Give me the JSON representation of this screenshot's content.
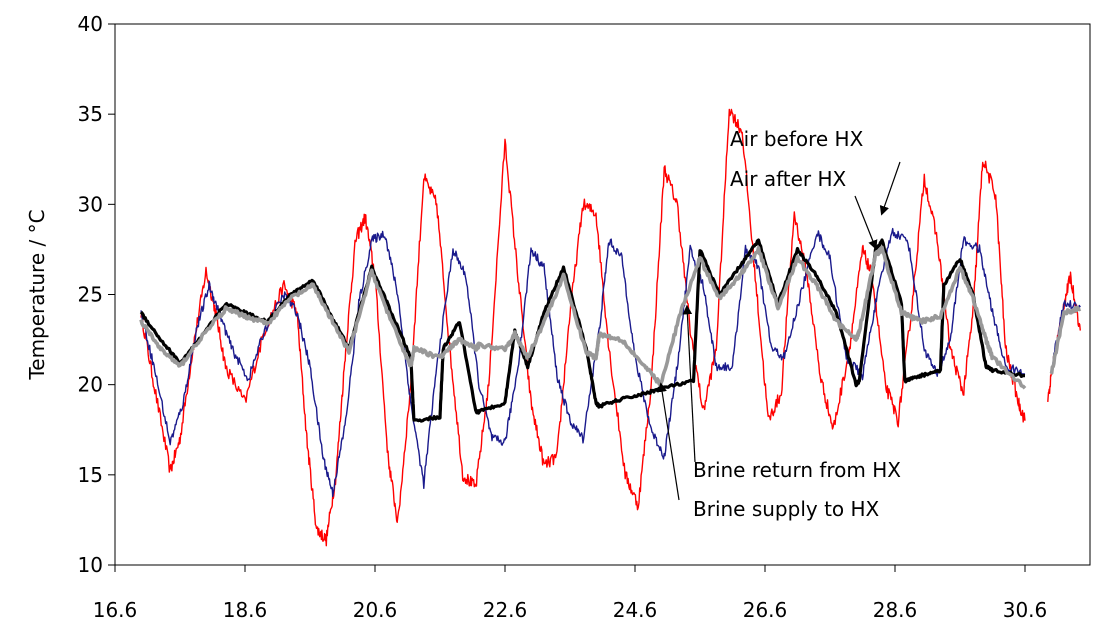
{
  "chart_data": {
    "type": "line",
    "title": "",
    "xlabel": "",
    "ylabel": "Temperature / °C",
    "xlim": [
      16.6,
      31.6
    ],
    "ylim": [
      10,
      40
    ],
    "x_ticks": [
      "16.6",
      "18.6",
      "20.6",
      "22.6",
      "24.6",
      "26.6",
      "28.6",
      "30.6"
    ],
    "y_ticks": [
      "10",
      "15",
      "20",
      "25",
      "30",
      "35",
      "40"
    ],
    "grid": false,
    "legend": "none",
    "series": [
      {
        "name": "Air before HX",
        "color": "#ff0000",
        "x": [
          17.0,
          17.2,
          17.45,
          17.6,
          17.8,
          18.0,
          18.15,
          18.3,
          18.6,
          18.9,
          19.2,
          19.4,
          19.55,
          19.7,
          19.85,
          20.0,
          20.15,
          20.3,
          20.45,
          20.6,
          20.8,
          20.95,
          21.15,
          21.35,
          21.55,
          21.75,
          21.95,
          22.15,
          22.35,
          22.6,
          22.8,
          23.0,
          23.2,
          23.4,
          23.6,
          23.8,
          24.0,
          24.2,
          24.45,
          24.65,
          24.85,
          25.05,
          25.25,
          25.45,
          25.65,
          25.85,
          26.05,
          26.25,
          26.45,
          26.65,
          26.85,
          27.05,
          27.25,
          27.45,
          27.65,
          27.9,
          28.1,
          28.25,
          28.45,
          28.65,
          28.85,
          29.05,
          29.25,
          29.45,
          29.65,
          29.8,
          29.95,
          30.15,
          30.3,
          30.5,
          30.6
        ],
        "y": [
          24.0,
          20.0,
          15.2,
          17.0,
          22.0,
          26.3,
          24.0,
          21.0,
          19.0,
          23.0,
          25.5,
          24.0,
          17.0,
          12.0,
          11.4,
          15.0,
          22.0,
          28.0,
          29.3,
          26.0,
          16.0,
          12.3,
          20.0,
          31.5,
          30.0,
          22.0,
          15.0,
          14.3,
          20.0,
          33.5,
          26.0,
          19.0,
          15.5,
          16.0,
          24.0,
          30.0,
          29.5,
          22.0,
          15.0,
          13.3,
          20.0,
          32.0,
          30.0,
          23.0,
          18.5,
          22.0,
          35.3,
          34.0,
          26.0,
          18.0,
          19.5,
          29.5,
          26.0,
          20.5,
          17.5,
          22.0,
          27.5,
          26.0,
          20.0,
          18.0,
          24.0,
          31.5,
          28.0,
          22.0,
          19.5,
          24.0,
          32.5,
          30.5,
          22.0,
          19.0,
          18.0
        ]
      },
      {
        "name": "Air after HX",
        "color": "#1a1a8c",
        "x": [
          17.0,
          17.2,
          17.45,
          17.65,
          17.85,
          18.05,
          18.2,
          18.4,
          18.65,
          18.9,
          19.2,
          19.4,
          19.6,
          19.8,
          19.95,
          20.15,
          20.35,
          20.55,
          20.75,
          20.95,
          21.15,
          21.35,
          21.55,
          21.8,
          22.0,
          22.2,
          22.4,
          22.6,
          22.8,
          23.0,
          23.2,
          23.4,
          23.6,
          23.8,
          24.05,
          24.2,
          24.4,
          24.6,
          24.85,
          25.05,
          25.25,
          25.45,
          25.65,
          25.85,
          26.1,
          26.3,
          26.5,
          26.7,
          26.9,
          27.15,
          27.4,
          27.6,
          27.85,
          28.1,
          28.3,
          28.55,
          28.8,
          29.05,
          29.25,
          29.45,
          29.65,
          29.9,
          30.1,
          30.3,
          30.6
        ],
        "y": [
          24.0,
          21.0,
          16.8,
          19.0,
          23.0,
          25.5,
          24.0,
          22.0,
          20.3,
          23.0,
          25.0,
          24.0,
          21.0,
          16.0,
          14.0,
          18.0,
          24.5,
          28.0,
          28.4,
          25.0,
          19.0,
          14.5,
          21.0,
          27.5,
          26.0,
          20.0,
          17.0,
          16.8,
          21.0,
          27.5,
          26.5,
          20.5,
          18.0,
          17.0,
          23.0,
          28.0,
          27.0,
          21.5,
          17.5,
          16.0,
          21.0,
          27.5,
          25.5,
          21.0,
          21.0,
          27.5,
          26.5,
          22.0,
          21.5,
          25.0,
          28.5,
          27.0,
          21.5,
          20.5,
          24.5,
          28.5,
          28.0,
          22.0,
          20.5,
          22.5,
          28.0,
          27.5,
          24.0,
          21.0,
          20.6
        ]
      },
      {
        "name": "Brine return from HX",
        "color": "#000000",
        "x": [
          17.0,
          17.3,
          17.6,
          17.9,
          18.3,
          18.6,
          18.95,
          19.3,
          19.65,
          19.9,
          20.2,
          20.55,
          20.85,
          21.15,
          21.2,
          21.6,
          21.65,
          21.9,
          22.15,
          22.2,
          22.6,
          22.75,
          22.95,
          23.2,
          23.5,
          23.85,
          24.0,
          24.05,
          24.4,
          24.75,
          25.0,
          25.5,
          25.6,
          25.9,
          26.2,
          26.5,
          26.8,
          27.1,
          27.4,
          27.7,
          28.0,
          28.05,
          28.3,
          28.4,
          28.7,
          28.75,
          29.0,
          29.3,
          29.35,
          29.6,
          29.8,
          30.0,
          30.1,
          30.6
        ],
        "y": [
          24.0,
          22.5,
          21.2,
          22.5,
          24.5,
          24.0,
          23.5,
          25.0,
          25.8,
          24.0,
          22.0,
          26.5,
          24.0,
          21.5,
          18.0,
          18.2,
          22.0,
          23.5,
          18.5,
          18.5,
          19.0,
          23.0,
          21.0,
          24.0,
          26.5,
          22.0,
          19.0,
          18.8,
          19.2,
          19.5,
          19.8,
          20.2,
          27.5,
          25.0,
          26.5,
          28.0,
          24.5,
          27.5,
          26.0,
          24.0,
          20.0,
          20.2,
          27.5,
          28.0,
          24.5,
          20.2,
          20.5,
          20.8,
          25.5,
          27.0,
          25.0,
          21.0,
          20.8,
          20.5
        ]
      },
      {
        "name": "Brine supply to HX",
        "color": "#999999",
        "x": [
          17.0,
          17.3,
          17.6,
          17.9,
          18.3,
          18.6,
          18.95,
          19.3,
          19.65,
          19.9,
          20.2,
          20.55,
          20.85,
          21.15,
          21.2,
          21.6,
          21.9,
          22.15,
          22.2,
          22.6,
          22.75,
          22.95,
          23.2,
          23.5,
          23.85,
          24.0,
          24.05,
          24.4,
          24.75,
          25.0,
          25.3,
          25.6,
          25.9,
          26.2,
          26.5,
          26.8,
          27.1,
          27.4,
          27.7,
          28.0,
          28.05,
          28.3,
          28.4,
          28.7,
          29.0,
          29.3,
          29.6,
          29.8,
          30.0,
          30.1,
          30.6
        ],
        "y": [
          23.5,
          22.0,
          21.0,
          22.5,
          24.2,
          23.8,
          23.4,
          24.8,
          25.5,
          23.8,
          21.8,
          26.3,
          23.5,
          21.0,
          22.0,
          21.5,
          22.5,
          22.0,
          22.2,
          22.0,
          22.8,
          21.5,
          23.5,
          26.0,
          21.8,
          21.5,
          22.8,
          22.5,
          21.0,
          20.0,
          24.0,
          27.0,
          24.8,
          26.0,
          27.5,
          24.3,
          27.0,
          25.5,
          23.5,
          22.5,
          23.0,
          27.2,
          27.5,
          24.0,
          23.5,
          23.8,
          26.5,
          24.8,
          22.5,
          21.5,
          19.8
        ]
      },
      {
        "name": "",
        "color": "#ff0000",
        "x": [
          30.95,
          31.05,
          31.2,
          31.3,
          31.45
        ],
        "y": [
          19.2,
          21.5,
          24.5,
          26.0,
          23.0
        ]
      },
      {
        "name": "",
        "color": "#1a1a8c",
        "x": [
          31.0,
          31.2,
          31.45
        ],
        "y": [
          20.8,
          24.5,
          24.3
        ]
      },
      {
        "name": "",
        "color": "#999999",
        "x": [
          31.0,
          31.2,
          31.45
        ],
        "y": [
          20.5,
          24.0,
          24.2
        ]
      }
    ],
    "annotations": [
      {
        "text": "Air before HX",
        "points_to": [
          28.4,
          29.5
        ]
      },
      {
        "text": "Air after HX",
        "points_to": [
          28.3,
          27.6
        ]
      },
      {
        "text": "Brine return from HX",
        "points_to": [
          25.4,
          24.3
        ]
      },
      {
        "text": "Brine supply to HX",
        "points_to": [
          25.0,
          20.0
        ]
      }
    ]
  }
}
